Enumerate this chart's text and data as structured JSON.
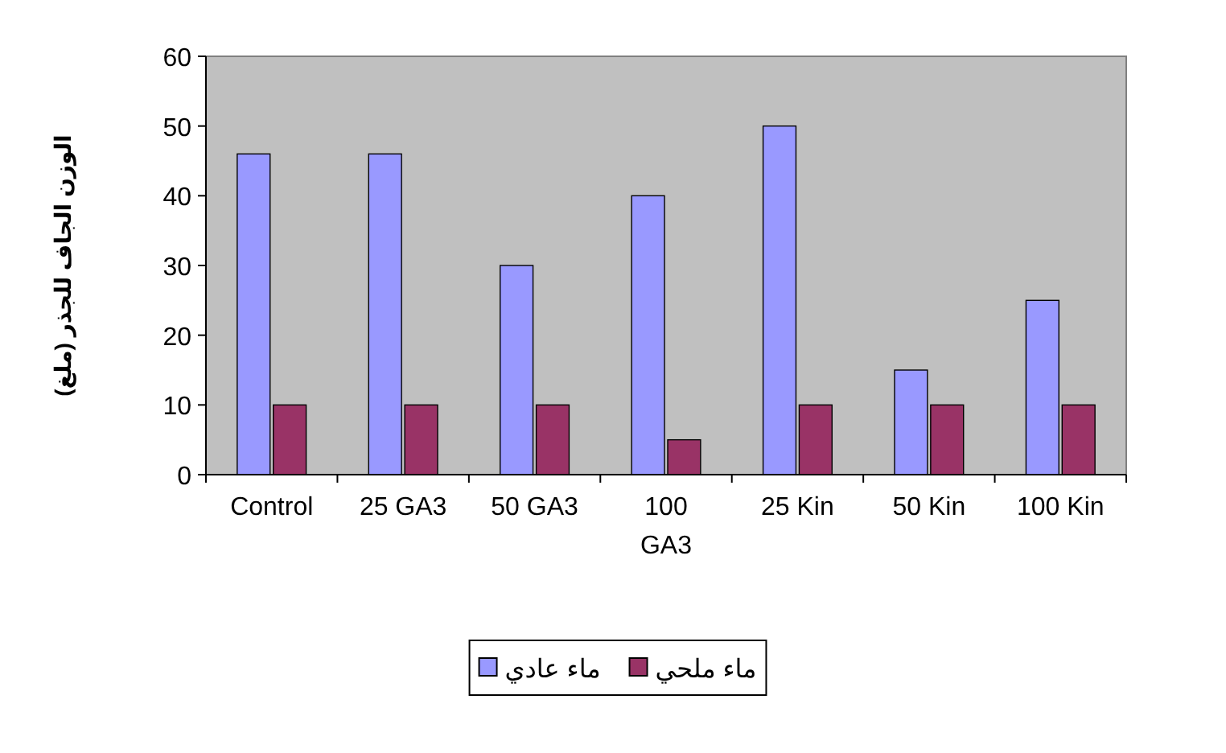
{
  "chart_data": {
    "type": "bar",
    "ylabel": "الوزن الجاف للجذر (ملغ)",
    "categories": [
      "Control",
      "25 GA3",
      "50 GA3",
      "100 GA3",
      "25 Kin",
      "50 Kin",
      "100 Kin"
    ],
    "series": [
      {
        "name": "ماء عادي",
        "color": "#9999ff",
        "values": [
          46,
          46,
          30,
          40,
          50,
          15,
          25
        ]
      },
      {
        "name": "ماء ملحي",
        "color": "#993366",
        "values": [
          10,
          10,
          10,
          5,
          10,
          10,
          10
        ]
      }
    ],
    "ylim": [
      0,
      60
    ],
    "yticks": [
      0,
      10,
      20,
      30,
      40,
      50,
      60
    ],
    "grid": false,
    "legend": "bottom"
  }
}
